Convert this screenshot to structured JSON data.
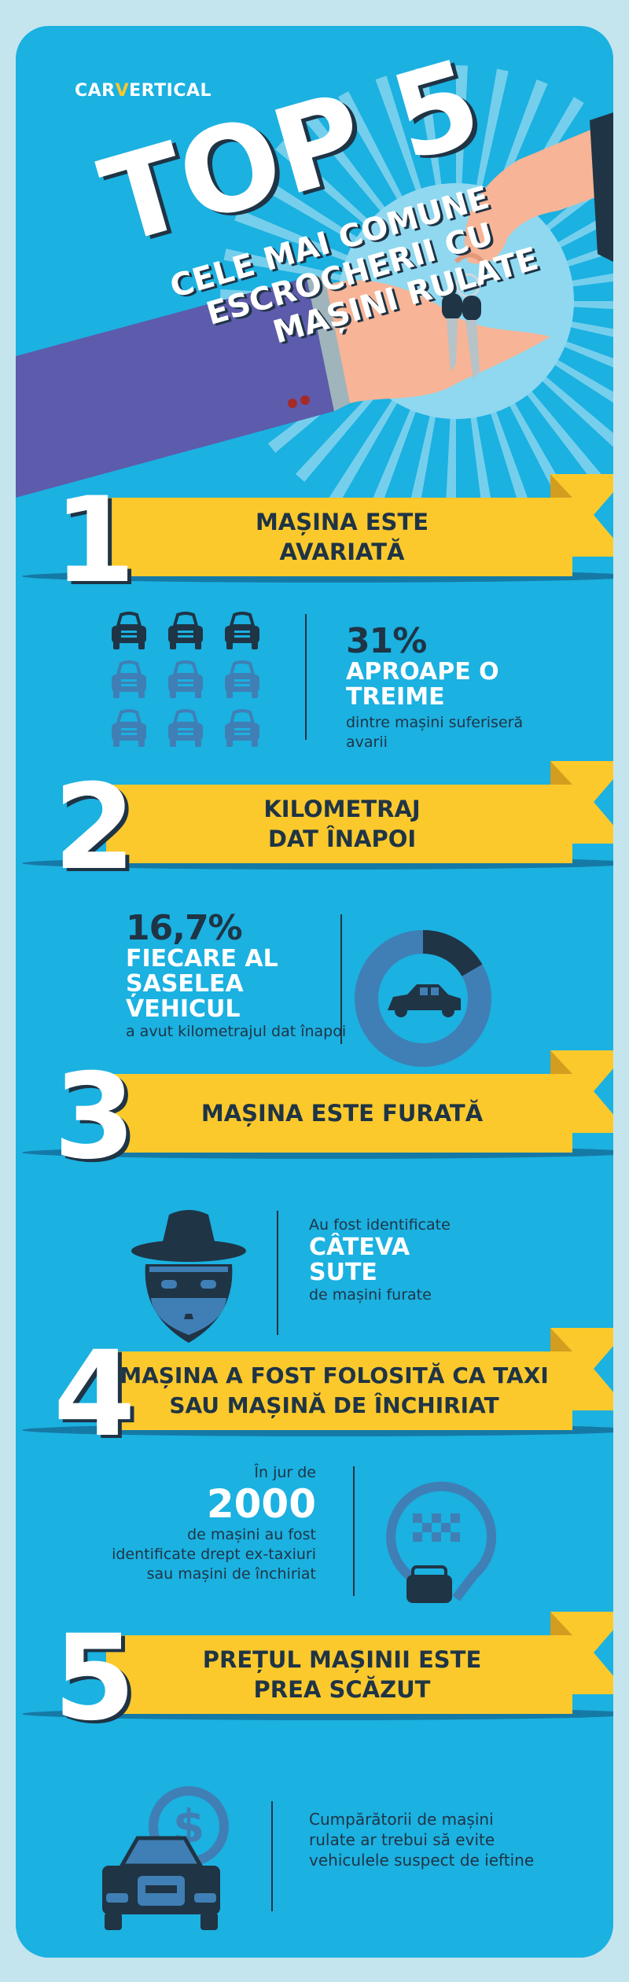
{
  "colors": {
    "background": "#c4e5ee",
    "card": "#1bb1e1",
    "ribbon": "#fcc92c",
    "ribbon_fold": "#d39e1f",
    "navy": "#1f3445",
    "mid_blue": "#3f7fb5",
    "sleeve": "#5d5bab",
    "skin": "#f7b496"
  },
  "logo": {
    "part1": "CAR",
    "part2": "V",
    "part3": "ERTICAL"
  },
  "header": {
    "title": "TOP 5",
    "subtitle_lines": [
      "CELE MAI COMUNE",
      "ESCROCHERII CU",
      "MAȘINI RULATE"
    ],
    "illustration": "hand-giving-car-keys"
  },
  "sections": [
    {
      "number": "1",
      "title_lines": [
        "MAȘINA ESTE",
        "AVARIATĂ"
      ],
      "stat": "31%",
      "highlight_lines": [
        "APROAPE O",
        "TREIME"
      ],
      "caption": "dintre mașini suferiseră avarii",
      "icon": "car-grid-icon",
      "cars_highlighted": 3,
      "cars_total": 9
    },
    {
      "number": "2",
      "title_lines": [
        "KILOMETRAJ",
        "DAT ÎNAPOI"
      ],
      "stat": "16,7%",
      "highlight_lines": [
        "FIECARE AL",
        "ȘASELEA",
        "VEHICUL"
      ],
      "caption": "a avut kilometrajul dat înapoi",
      "icon": "donut-car-icon",
      "donut_fraction": 0.167
    },
    {
      "number": "3",
      "title_lines": [
        "MAȘINA ESTE FURATĂ"
      ],
      "pre": "Au fost identificate",
      "highlight_lines": [
        "CÂTEVA",
        "SUTE"
      ],
      "caption": "de mașini furate",
      "icon": "thief-icon"
    },
    {
      "number": "4",
      "title_lines": [
        "MAȘINA A FOST FOLOSITĂ CA TAXI",
        "SAU MAȘINĂ DE ÎNCHIRIAT"
      ],
      "pre": "În jur de",
      "stat": "2000",
      "caption_lines": [
        "de mașini au fost",
        "identificate drept ex-taxiuri",
        "sau mașini de închiriat"
      ],
      "icon": "taxi-pin-icon"
    },
    {
      "number": "5",
      "title_lines": [
        "PREȚUL MAȘINII ESTE",
        "PREA SCĂZUT"
      ],
      "caption_lines": [
        "Cumpărătorii de mașini",
        "rulate ar trebui să evite",
        "vehiculele suspect de ieftine"
      ],
      "icon": "car-dollar-icon"
    }
  ]
}
